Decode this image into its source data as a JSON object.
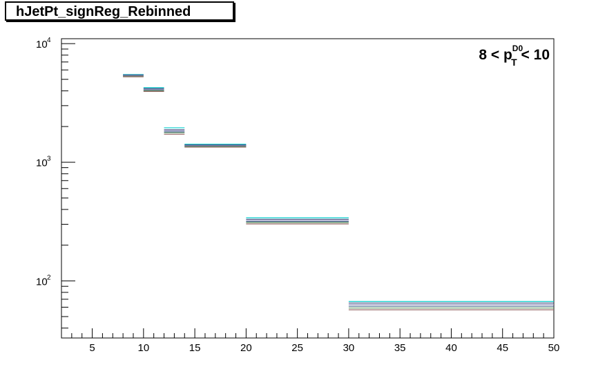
{
  "title": "hJetPt_signReg_Rebinned",
  "colors": {
    "frame": "#000000",
    "series": [
      "#00cccc",
      "#5a5a8a",
      "#8a8aba",
      "#4a6a8a",
      "#6a9a6a",
      "#9a6a6a",
      "#3a3a3a",
      "#7a7a9a",
      "#aaaaaa",
      "#2a8a8a"
    ]
  },
  "chart_data": {
    "type": "line",
    "title": "hJetPt_signReg_Rebinned",
    "xlabel": "",
    "ylabel": "",
    "xlim": [
      2,
      50
    ],
    "ylim": [
      33,
      11000
    ],
    "ylog": true,
    "grid": false,
    "x_ticks": [
      5,
      10,
      15,
      20,
      25,
      30,
      35,
      40,
      45,
      50
    ],
    "x_tick_labels": [
      "5",
      "10",
      "15",
      "20",
      "25",
      "30",
      "35",
      "40",
      "45",
      "50"
    ],
    "y_ticks": [
      {
        "value": 100,
        "base": "10",
        "exp": "2"
      },
      {
        "value": 1000,
        "base": "10",
        "exp": "3"
      },
      {
        "value": 10000,
        "base": "10",
        "exp": "4"
      }
    ],
    "bins": [
      {
        "low": 8,
        "high": 10,
        "values": [
          5500,
          5450,
          5400,
          5350,
          5300,
          5250
        ]
      },
      {
        "low": 10,
        "high": 12,
        "values": [
          4250,
          4180,
          4120,
          4060,
          4000,
          3950
        ]
      },
      {
        "low": 12,
        "high": 14,
        "values": [
          1950,
          1880,
          1840,
          1800,
          1770,
          1720
        ]
      },
      {
        "low": 14,
        "high": 20,
        "values": [
          1420,
          1400,
          1385,
          1370,
          1355,
          1340
        ]
      },
      {
        "low": 20,
        "high": 30,
        "values": [
          340,
          330,
          322,
          316,
          310,
          302
        ]
      },
      {
        "low": 30,
        "high": 50,
        "values": [
          67,
          65,
          63,
          61,
          59,
          57
        ]
      }
    ],
    "annotation": {
      "prefix": "8 < p",
      "subscript": "T",
      "superscript": "D0",
      "suffix": " < 10",
      "position": "top-right"
    }
  }
}
